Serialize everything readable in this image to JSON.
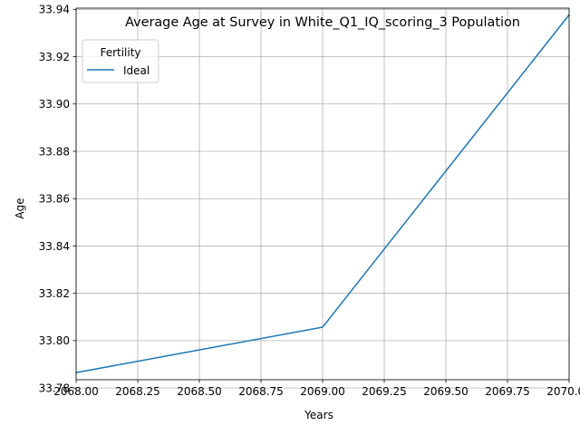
{
  "chart_data": {
    "type": "line",
    "title": "Average Age at Survey in White_Q1_IQ_scoring_3 Population",
    "xlabel": "Years",
    "ylabel": "Age",
    "xlim": [
      1.0,
      3.0
    ],
    "ylim": [
      33.7835,
      33.9405
    ],
    "x_ticks": [
      1.0,
      1.25,
      1.5,
      1.75,
      2.0,
      2.25,
      2.5,
      2.75,
      3.0
    ],
    "x_tick_labels": [
      "2068.00",
      "2068.25",
      "2068.50",
      "2068.75",
      "2069.00",
      "2069.25",
      "2069.50",
      "2069.75",
      "2070.00"
    ],
    "y_ticks": [
      33.78,
      33.8,
      33.82,
      33.84,
      33.86,
      33.88,
      33.9,
      33.92,
      33.94
    ],
    "y_tick_labels": [
      "33.78",
      "33.80",
      "33.82",
      "33.84",
      "33.86",
      "33.88",
      "33.90",
      "33.92",
      "33.94"
    ],
    "grid": true,
    "legend": {
      "title": "Fertility",
      "position": "top-left"
    },
    "series": [
      {
        "name": "Ideal",
        "color": "#1f77b4",
        "x": [
          2068,
          2069,
          2070
        ],
        "y": [
          33.7865,
          33.8057,
          33.9377
        ]
      }
    ]
  }
}
